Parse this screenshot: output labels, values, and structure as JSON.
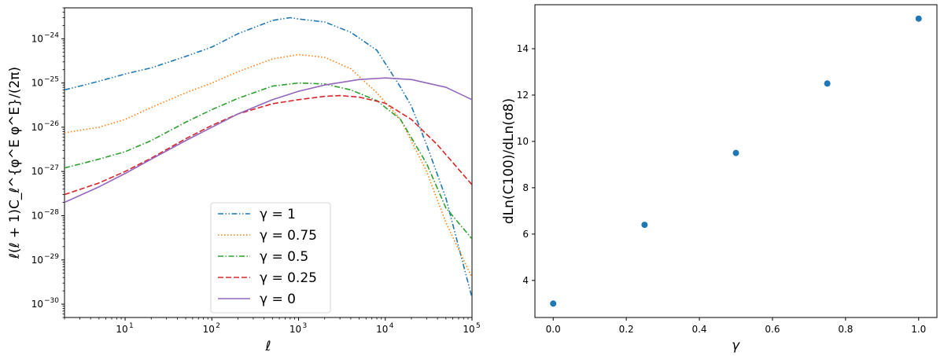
{
  "chart_data": [
    {
      "type": "line",
      "title": "",
      "xlabel": "ℓ",
      "ylabel": "ℓ(ℓ + 1)C_ℓ^{φ^E φ^E}/(2π)",
      "xscale": "log",
      "yscale": "log",
      "xlim": [
        2,
        100000
      ],
      "ylim": [
        5e-31,
        5e-24
      ],
      "xticks": [
        {
          "exp": "1"
        },
        {
          "exp": "2"
        },
        {
          "exp": "3"
        },
        {
          "exp": "4"
        },
        {
          "exp": "5"
        }
      ],
      "yticks": [
        {
          "exp": "−24"
        },
        {
          "exp": "−25"
        },
        {
          "exp": "−26"
        },
        {
          "exp": "−27"
        },
        {
          "exp": "−28"
        },
        {
          "exp": "−29"
        },
        {
          "exp": "−30"
        }
      ],
      "tick_base": "10",
      "legend_position": "lower-center",
      "series": [
        {
          "name": "γ = 1",
          "color": "#1f77b4",
          "dash": "dashdotdot",
          "x": [
            2,
            3,
            5,
            10,
            20,
            50,
            100,
            200,
            500,
            800,
            1000,
            2000,
            4000,
            8000,
            15000,
            20000,
            30000,
            50000,
            100000
          ],
          "y": [
            7e-26,
            8.5e-26,
            1.1e-25,
            1.6e-25,
            2.2e-25,
            4e-25,
            6.5e-25,
            1.3e-24,
            2.6e-24,
            3e-24,
            2.8e-24,
            2.4e-24,
            1.4e-24,
            5.5e-25,
            8e-26,
            3e-26,
            4e-27,
            2.5e-28,
            1.4e-30
          ]
        },
        {
          "name": "γ = 0.75",
          "color": "#ff7f0e",
          "dash": "dotted",
          "x": [
            2,
            5,
            10,
            20,
            50,
            100,
            200,
            500,
            1000,
            2000,
            4000,
            8000,
            15000,
            30000,
            50000,
            100000
          ],
          "y": [
            7.5e-27,
            1e-26,
            1.5e-26,
            2.8e-26,
            6e-26,
            1e-25,
            1.8e-25,
            3.5e-25,
            4.4e-25,
            3.8e-25,
            2.1e-25,
            6e-26,
            1.5e-26,
            1e-27,
            7e-29,
            4e-30
          ]
        },
        {
          "name": "γ = 0.5",
          "color": "#2ca02c",
          "dash": "dashdot",
          "x": [
            2,
            5,
            10,
            20,
            50,
            100,
            200,
            500,
            1000,
            2000,
            4000,
            8000,
            15000,
            30000,
            50000,
            100000
          ],
          "y": [
            1.2e-27,
            1.9e-27,
            2.8e-27,
            5e-27,
            1.3e-26,
            2.5e-26,
            4.5e-26,
            8.5e-26,
            1e-25,
            9.5e-26,
            7e-26,
            4e-26,
            1.5e-26,
            1.5e-27,
            1.5e-28,
            3e-29
          ]
        },
        {
          "name": "γ = 0.25",
          "color": "#d62728",
          "dash": "dashed",
          "x": [
            2,
            5,
            10,
            20,
            50,
            100,
            200,
            500,
            1000,
            2000,
            3000,
            5000,
            10000,
            20000,
            40000,
            100000
          ],
          "y": [
            3e-28,
            5.5e-28,
            1e-27,
            2e-27,
            5.5e-27,
            1.1e-26,
            2e-26,
            3.4e-26,
            4.2e-26,
            5e-26,
            5.2e-26,
            4.8e-26,
            3.5e-26,
            1.5e-26,
            4e-27,
            5e-28
          ]
        },
        {
          "name": "γ = 0",
          "color": "#9467bd",
          "dash": "solid",
          "x": [
            2,
            5,
            10,
            20,
            50,
            100,
            200,
            500,
            1000,
            2000,
            5000,
            10000,
            20000,
            50000,
            100000
          ],
          "y": [
            2e-28,
            4.5e-28,
            9e-28,
            1.9e-27,
            5e-27,
            1e-26,
            2e-26,
            4.2e-26,
            6.5e-26,
            9e-26,
            1.2e-25,
            1.3e-25,
            1.2e-25,
            8e-26,
            4.2e-26
          ]
        }
      ]
    },
    {
      "type": "scatter",
      "title": "",
      "xlabel": "γ",
      "ylabel": "dLn(C100)/dLn(σ8)",
      "xlim": [
        -0.05,
        1.05
      ],
      "ylim": [
        2.4,
        15.9
      ],
      "xticks": [
        "0.0",
        "0.2",
        "0.4",
        "0.6",
        "0.8",
        "1.0"
      ],
      "yticks": [
        "4",
        "6",
        "8",
        "10",
        "12",
        "14"
      ],
      "color": "#1f77b4",
      "x": [
        0.0,
        0.25,
        0.5,
        0.75,
        1.0
      ],
      "y": [
        3.0,
        6.4,
        9.5,
        12.5,
        15.3
      ]
    }
  ]
}
